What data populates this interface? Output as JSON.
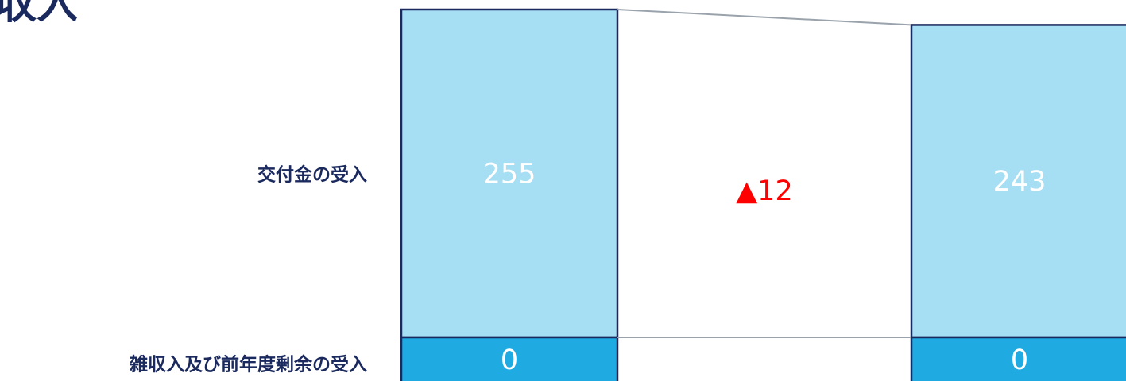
{
  "title_fragment": "収入",
  "colors": {
    "title": "#1b2a5e",
    "bar_outline": "#1b2a5e",
    "segment_top": "#a6def3",
    "segment_bottom": "#1fabe2",
    "value_text": "#ffffff",
    "delta_text": "#ff0000",
    "connector": "#9aa3ab"
  },
  "chart_data": {
    "type": "bar",
    "stacked": true,
    "categories": [
      "",
      ""
    ],
    "series": [
      {
        "name": "雑収入及び前年度剰余の受入",
        "values": [
          0,
          0
        ],
        "labels": [
          "0",
          "0"
        ]
      },
      {
        "name": "交付金の受入",
        "values": [
          255,
          243
        ],
        "labels": [
          "255",
          "243"
        ]
      }
    ],
    "annotations": [
      {
        "text": "▲12",
        "between": [
          0,
          1
        ],
        "series": "交付金の受入"
      }
    ],
    "row_labels": [
      "交付金の受入",
      "雑収入及び前年度剰余の受入"
    ]
  }
}
